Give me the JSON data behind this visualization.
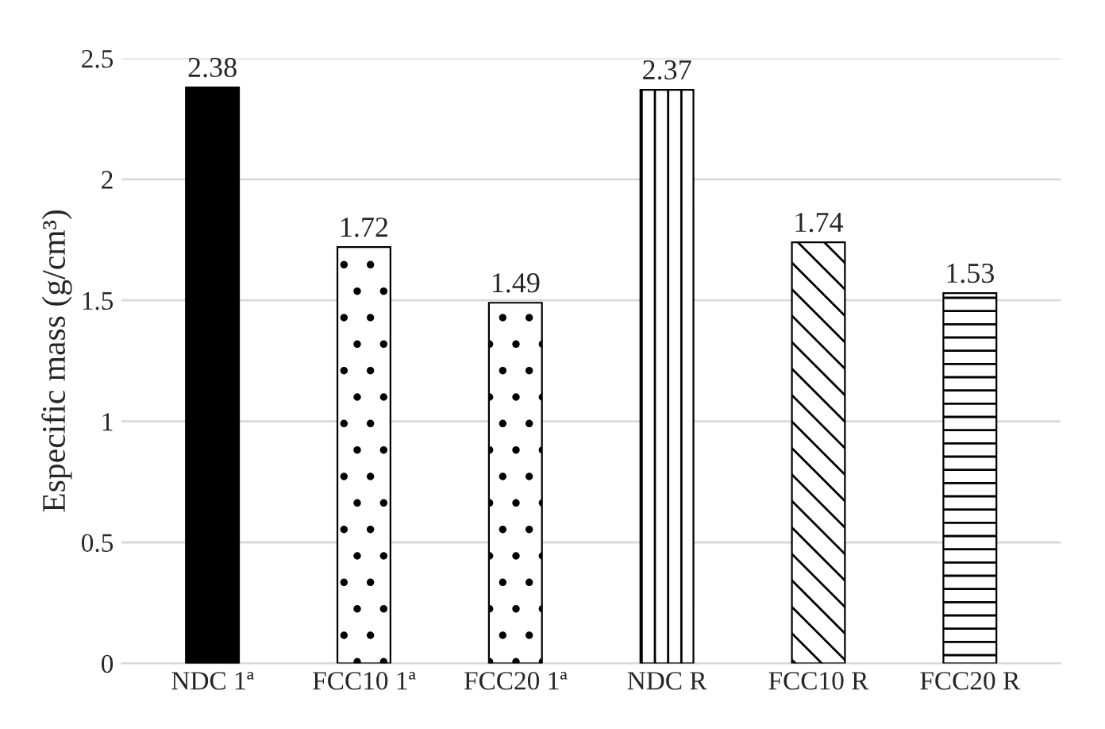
{
  "chart_data": {
    "type": "bar",
    "ylabel": "Especific mass (g/cm³)",
    "categories": [
      "NDC 1ª",
      "FCC10 1ª",
      "FCC20 1ª",
      "NDC R",
      "FCC10 R",
      "FCC20 R"
    ],
    "values": [
      2.38,
      1.72,
      1.49,
      2.37,
      1.74,
      1.53
    ],
    "colors": [
      "#000000",
      "#ffffff",
      "#ffffff",
      "#ffffff",
      "#ffffff",
      "#ffffff"
    ],
    "ylim": [
      0,
      2.5
    ],
    "yticks": [
      0,
      0.5,
      1,
      1.5,
      2,
      2.5
    ],
    "grid": "y",
    "data_labels": true
  }
}
